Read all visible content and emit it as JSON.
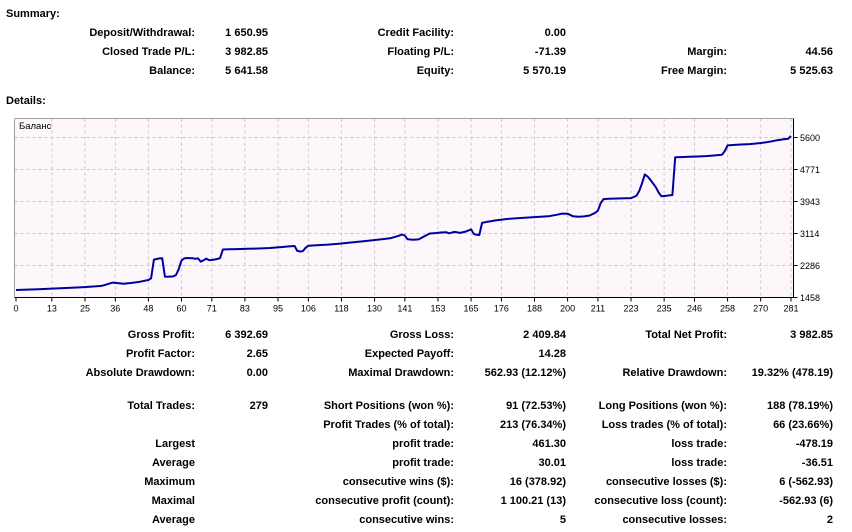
{
  "summary": {
    "heading": "Summary:",
    "rows": [
      {
        "l1": "Deposit/Withdrawal:",
        "v1": "1 650.95",
        "l2": "Credit Facility:",
        "v2": "0.00",
        "l3": "",
        "v3": ""
      },
      {
        "l1": "Closed Trade P/L:",
        "v1": "3 982.85",
        "l2": "Floating P/L:",
        "v2": "-71.39",
        "l3": "Margin:",
        "v3": "44.56"
      },
      {
        "l1": "Balance:",
        "v1": "5 641.58",
        "l2": "Equity:",
        "v2": "5 570.19",
        "l3": "Free Margin:",
        "v3": "5 525.63"
      }
    ]
  },
  "details": {
    "heading": "Details:",
    "rows": [
      {
        "l1": "Gross Profit:",
        "v1": "6 392.69",
        "l2": "Gross Loss:",
        "v2": "2 409.84",
        "l3": "Total Net Profit:",
        "v3": "3 982.85"
      },
      {
        "l1": "Profit Factor:",
        "v1": "2.65",
        "l2": "Expected Payoff:",
        "v2": "14.28",
        "l3": "",
        "v3": ""
      },
      {
        "l1": "Absolute Drawdown:",
        "v1": "0.00",
        "l2": "Maximal Drawdown:",
        "v2": "562.93 (12.12%)",
        "l3": "Relative Drawdown:",
        "v3": "19.32% (478.19)"
      },
      {
        "l1": "Total Trades:",
        "v1": "279",
        "l2": "Short Positions (won %):",
        "v2": "91 (72.53%)",
        "l3": "Long Positions (won %):",
        "v3": "188 (78.19%)",
        "gap": true
      },
      {
        "l1": "",
        "v1": "",
        "l2": "Profit Trades (% of total):",
        "v2": "213 (76.34%)",
        "l3": "Loss trades (% of total):",
        "v3": "66 (23.66%)"
      },
      {
        "l1": "Largest",
        "v1": "",
        "l2": "profit trade:",
        "v2": "461.30",
        "l3": "loss trade:",
        "v3": "-478.19"
      },
      {
        "l1": "Average",
        "v1": "",
        "l2": "profit trade:",
        "v2": "30.01",
        "l3": "loss trade:",
        "v3": "-36.51"
      },
      {
        "l1": "Maximum",
        "v1": "",
        "l2": "consecutive wins ($):",
        "v2": "16 (378.92)",
        "l3": "consecutive losses ($):",
        "v3": "6 (-562.93)"
      },
      {
        "l1": "Maximal",
        "v1": "",
        "l2": "consecutive profit (count):",
        "v2": "1 100.21 (13)",
        "l3": "consecutive loss (count):",
        "v3": "-562.93 (6)"
      },
      {
        "l1": "Average",
        "v1": "",
        "l2": "consecutive wins:",
        "v2": "5",
        "l3": "consecutive losses:",
        "v3": "2"
      }
    ]
  },
  "chart_data": {
    "type": "line",
    "title": "Баланс",
    "xlabel": "",
    "ylabel": "",
    "xlim": [
      0,
      281
    ],
    "ylim": [
      1458,
      5600
    ],
    "grid": true,
    "legend_position": "top-left-inside",
    "x_ticks": [
      0,
      13,
      25,
      36,
      48,
      60,
      71,
      83,
      95,
      106,
      118,
      130,
      141,
      153,
      165,
      176,
      188,
      200,
      211,
      223,
      235,
      246,
      258,
      270,
      281
    ],
    "y_ticks": [
      1458,
      2286,
      3114,
      3943,
      4771,
      5600
    ],
    "colors": {
      "line": "#0000a0",
      "grid": "#c9c9c9",
      "plot_bg": "#fdf7fc",
      "axis": "#000000",
      "border": "#a0a0a0"
    },
    "series": [
      {
        "name": "Баланс",
        "points": [
          [
            0,
            1651
          ],
          [
            4,
            1662
          ],
          [
            8,
            1672
          ],
          [
            12,
            1684
          ],
          [
            16,
            1699
          ],
          [
            20,
            1712
          ],
          [
            24,
            1725
          ],
          [
            28,
            1742
          ],
          [
            31,
            1758
          ],
          [
            33,
            1800
          ],
          [
            35,
            1845
          ],
          [
            37,
            1830
          ],
          [
            39,
            1812
          ],
          [
            42,
            1835
          ],
          [
            45,
            1868
          ],
          [
            48,
            1910
          ],
          [
            49,
            1955
          ],
          [
            50,
            2440
          ],
          [
            51,
            2455
          ],
          [
            52,
            2470
          ],
          [
            53,
            2475
          ],
          [
            54,
            2000
          ],
          [
            55,
            1997
          ],
          [
            57,
            2005
          ],
          [
            58,
            2040
          ],
          [
            59,
            2190
          ],
          [
            60,
            2415
          ],
          [
            61,
            2470
          ],
          [
            62,
            2480
          ],
          [
            64,
            2475
          ],
          [
            65,
            2460
          ],
          [
            66,
            2470
          ],
          [
            67,
            2385
          ],
          [
            68,
            2420
          ],
          [
            69,
            2465
          ],
          [
            70,
            2425
          ],
          [
            71,
            2430
          ],
          [
            73,
            2455
          ],
          [
            74,
            2480
          ],
          [
            75,
            2700
          ],
          [
            77,
            2708
          ],
          [
            80,
            2712
          ],
          [
            84,
            2718
          ],
          [
            88,
            2726
          ],
          [
            92,
            2740
          ],
          [
            96,
            2762
          ],
          [
            99,
            2780
          ],
          [
            101,
            2790
          ],
          [
            102,
            2665
          ],
          [
            103,
            2650
          ],
          [
            104,
            2658
          ],
          [
            105,
            2745
          ],
          [
            106,
            2800
          ],
          [
            109,
            2812
          ],
          [
            113,
            2828
          ],
          [
            117,
            2850
          ],
          [
            121,
            2878
          ],
          [
            126,
            2915
          ],
          [
            131,
            2952
          ],
          [
            136,
            2995
          ],
          [
            139,
            3060
          ],
          [
            140,
            3090
          ],
          [
            141,
            3060
          ],
          [
            142,
            2965
          ],
          [
            144,
            2952
          ],
          [
            146,
            2962
          ],
          [
            148,
            3040
          ],
          [
            150,
            3115
          ],
          [
            152,
            3125
          ],
          [
            154,
            3140
          ],
          [
            156,
            3148
          ],
          [
            157,
            3120
          ],
          [
            159,
            3155
          ],
          [
            161,
            3130
          ],
          [
            163,
            3165
          ],
          [
            165,
            3220
          ],
          [
            166,
            3105
          ],
          [
            167,
            3080
          ],
          [
            168,
            3075
          ],
          [
            169,
            3390
          ],
          [
            171,
            3420
          ],
          [
            174,
            3455
          ],
          [
            178,
            3490
          ],
          [
            183,
            3515
          ],
          [
            188,
            3540
          ],
          [
            193,
            3560
          ],
          [
            196,
            3598
          ],
          [
            198,
            3630
          ],
          [
            200,
            3628
          ],
          [
            202,
            3560
          ],
          [
            204,
            3548
          ],
          [
            206,
            3558
          ],
          [
            208,
            3582
          ],
          [
            210,
            3650
          ],
          [
            211,
            3705
          ],
          [
            212,
            3902
          ],
          [
            213,
            4005
          ],
          [
            215,
            4012
          ],
          [
            218,
            4020
          ],
          [
            221,
            4028
          ],
          [
            223,
            4032
          ],
          [
            224,
            4060
          ],
          [
            225,
            4095
          ],
          [
            226,
            4220
          ],
          [
            227,
            4420
          ],
          [
            228,
            4644
          ],
          [
            229,
            4590
          ],
          [
            230,
            4505
          ],
          [
            231,
            4410
          ],
          [
            232,
            4310
          ],
          [
            233,
            4175
          ],
          [
            234,
            4081
          ],
          [
            235,
            4085
          ],
          [
            236,
            4092
          ],
          [
            237,
            4105
          ],
          [
            238,
            4110
          ],
          [
            239,
            5087
          ],
          [
            241,
            5092
          ],
          [
            244,
            5100
          ],
          [
            247,
            5108
          ],
          [
            250,
            5118
          ],
          [
            252,
            5128
          ],
          [
            254,
            5140
          ],
          [
            256,
            5152
          ],
          [
            257,
            5250
          ],
          [
            258,
            5395
          ],
          [
            260,
            5405
          ],
          [
            262,
            5415
          ],
          [
            264,
            5422
          ],
          [
            266,
            5430
          ],
          [
            268,
            5442
          ],
          [
            270,
            5458
          ],
          [
            272,
            5477
          ],
          [
            274,
            5502
          ],
          [
            276,
            5530
          ],
          [
            278,
            5552
          ],
          [
            280,
            5568
          ],
          [
            281,
            5641
          ]
        ]
      }
    ]
  }
}
